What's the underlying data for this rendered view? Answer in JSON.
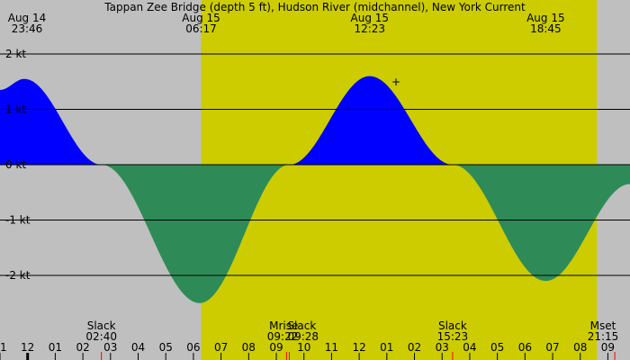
{
  "chart_data": {
    "type": "area",
    "title": "Tappan Zee Bridge (depth 5 ft), Hudson River (midchannel), New York Current",
    "xlabel": "",
    "ylabel": "",
    "x_range_hours": [
      -1.0,
      21.8
    ],
    "ylim": [
      -3.0,
      2.0
    ],
    "y_ticks": [
      {
        "value": 2,
        "label": "2 kt"
      },
      {
        "value": 1,
        "label": "1 kt"
      },
      {
        "value": 0,
        "label": "0 kt"
      },
      {
        "value": -1,
        "label": "-1 kt"
      },
      {
        "value": -2,
        "label": "-2 kt"
      }
    ],
    "grid": true,
    "colors": {
      "background_night": "#bfbfbf",
      "background_day": "#cccc00",
      "flood": "#0000ff",
      "ebb": "#2e8b57",
      "grid": "#000000",
      "moon_tick": "#ff0000"
    },
    "daylight_hours": [
      6.28,
      20.6
    ],
    "series": [
      {
        "x": [
          -1.0,
          -0.12,
          2.67,
          6.23,
          9.47,
          12.38,
          15.38,
          18.75,
          21.8
        ],
        "y": [
          1.35,
          1.55,
          0.0,
          -2.5,
          0.0,
          1.6,
          0.0,
          -2.1,
          -0.35
        ]
      }
    ],
    "top_events": [
      {
        "date": "Aug 14",
        "time": "23:46",
        "hour": -0.23
      },
      {
        "date": "Aug 15",
        "time": "06:17",
        "hour": 6.28
      },
      {
        "date": "Aug 15",
        "time": "12:23",
        "hour": 12.38
      },
      {
        "date": "Aug 15",
        "time": "18:45",
        "hour": 18.75
      }
    ],
    "bottom_events": [
      {
        "label": "Slack",
        "time": "02:40",
        "hour": 2.67
      },
      {
        "label": "Mrise",
        "time": "09:22",
        "hour": 9.37
      },
      {
        "label": "Slack",
        "time": "09:28",
        "hour": 9.47
      },
      {
        "label": "Slack",
        "time": "15:23",
        "hour": 15.38
      },
      {
        "label": "Mset",
        "time": "21:15",
        "hour": 21.25
      }
    ],
    "hour_ticks": [
      {
        "label": "11",
        "hour": -1
      },
      {
        "label": "12",
        "hour": 0
      },
      {
        "label": "01",
        "hour": 1
      },
      {
        "label": "02",
        "hour": 2
      },
      {
        "label": "03",
        "hour": 3
      },
      {
        "label": "04",
        "hour": 4
      },
      {
        "label": "05",
        "hour": 5
      },
      {
        "label": "06",
        "hour": 6
      },
      {
        "label": "07",
        "hour": 7
      },
      {
        "label": "08",
        "hour": 8
      },
      {
        "label": "09",
        "hour": 9
      },
      {
        "label": "10",
        "hour": 10
      },
      {
        "label": "11",
        "hour": 11
      },
      {
        "label": "12",
        "hour": 12
      },
      {
        "label": "01",
        "hour": 13
      },
      {
        "label": "02",
        "hour": 14
      },
      {
        "label": "03",
        "hour": 15
      },
      {
        "label": "04",
        "hour": 16
      },
      {
        "label": "05",
        "hour": 17
      },
      {
        "label": "06",
        "hour": 18
      },
      {
        "label": "07",
        "hour": 19
      },
      {
        "label": "08",
        "hour": 20
      },
      {
        "label": "09",
        "hour": 21
      }
    ]
  }
}
